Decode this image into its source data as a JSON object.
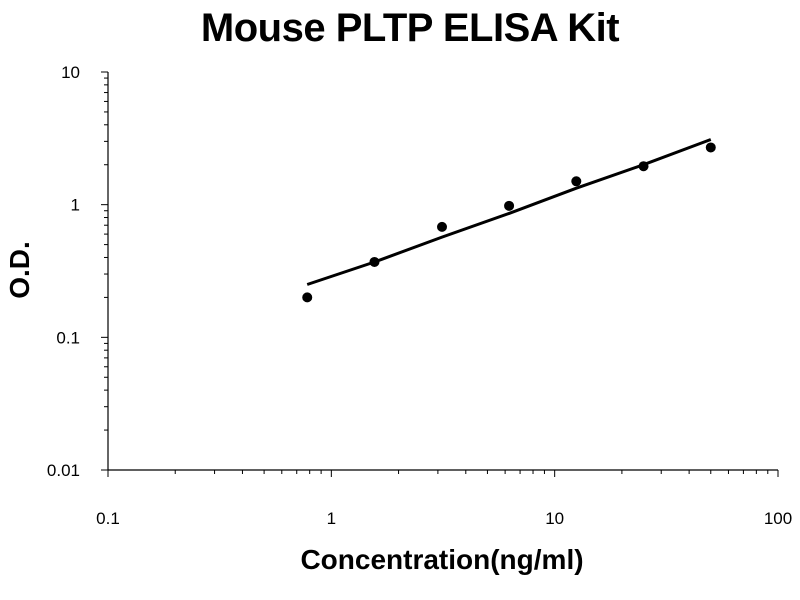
{
  "chart_data": {
    "type": "scatter",
    "title": "Mouse PLTP ELISA Kit",
    "xlabel": "Concentration(ng/ml)",
    "ylabel": "O.D.",
    "x_scale": "log",
    "y_scale": "log",
    "xlim": [
      0.1,
      100
    ],
    "ylim": [
      0.01,
      10
    ],
    "x_ticks": [
      0.1,
      1,
      10,
      100
    ],
    "x_tick_labels": [
      "0.1",
      "1",
      "10",
      "100"
    ],
    "y_ticks": [
      0.01,
      0.1,
      1,
      10
    ],
    "y_tick_labels": [
      "0.01",
      "0.1",
      "1",
      "10"
    ],
    "grid": false,
    "legend": "none",
    "marker_color": "#000000",
    "series": [
      {
        "x": [
          0.78,
          1.56,
          3.13,
          6.25,
          12.5,
          25,
          50
        ],
        "y": [
          0.2,
          0.37,
          0.68,
          0.98,
          1.5,
          1.95,
          2.7
        ]
      }
    ],
    "fit_line": {
      "x": [
        0.78,
        1.56,
        3.13,
        6.25,
        12.5,
        25,
        50
      ],
      "y": [
        0.25,
        0.37,
        0.57,
        0.86,
        1.33,
        2.0,
        3.1
      ]
    }
  }
}
